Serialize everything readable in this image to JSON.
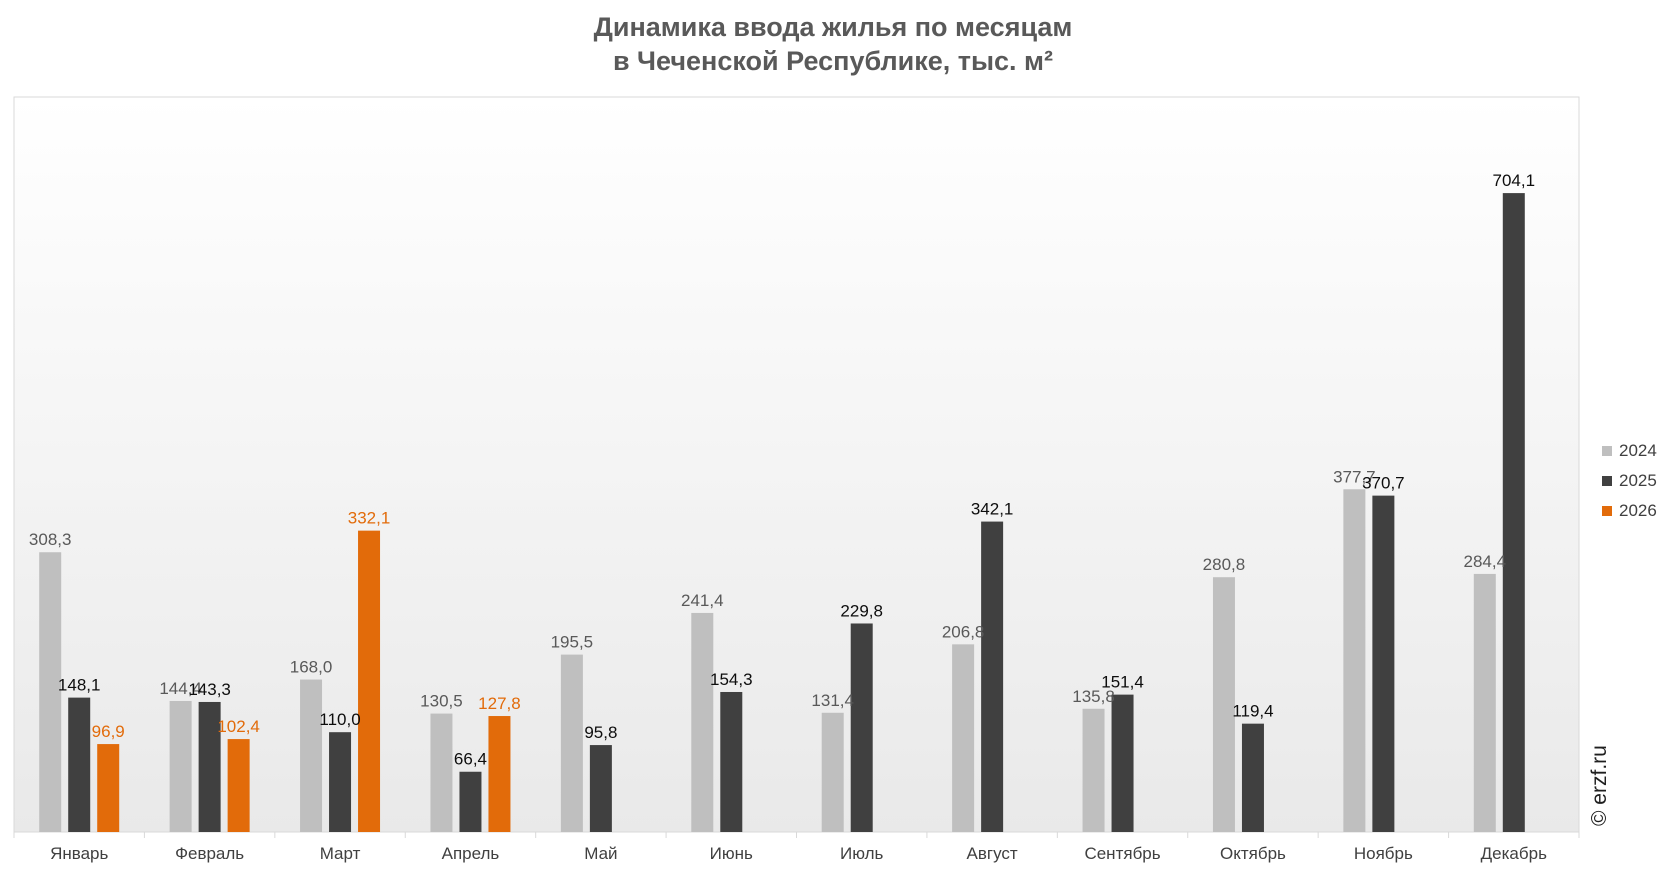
{
  "title_lines": [
    "Динамика ввода жилья по месяцам",
    "в Чеченской Республике, тыс. м²"
  ],
  "watermark": "© erzf.ru",
  "colors": {
    "2024": "#bfbfbf",
    "2025": "#404040",
    "2026": "#e26b0a",
    "label_2024": "#595959",
    "label_2025": "#0d0d0d",
    "label_2026": "#e26b0a"
  },
  "chart_data": {
    "type": "bar",
    "title": "Динамика ввода жилья по месяцам в Чеченской Республике, тыс. м²",
    "categories": [
      "Январь",
      "Февраль",
      "Март",
      "Апрель",
      "Май",
      "Июнь",
      "Июль",
      "Август",
      "Сентябрь",
      "Октябрь",
      "Ноябрь",
      "Декабрь"
    ],
    "series": [
      {
        "name": "2024",
        "values": [
          308.3,
          144.4,
          168.0,
          130.5,
          195.5,
          241.4,
          131.4,
          206.8,
          135.8,
          280.8,
          377.7,
          284.4
        ],
        "labels": [
          "308,3",
          "144,4",
          "168,0",
          "130,5",
          "195,5",
          "241,4",
          "131,4",
          "206,8",
          "135,8",
          "280,8",
          "377,7",
          "284,4"
        ]
      },
      {
        "name": "2025",
        "values": [
          148.1,
          143.3,
          110.0,
          66.4,
          95.8,
          154.3,
          229.8,
          342.1,
          151.4,
          119.4,
          370.7,
          704.1
        ],
        "labels": [
          "148,1",
          "143,3",
          "110,0",
          "66,4",
          "95,8",
          "154,3",
          "229,8",
          "342,1",
          "151,4",
          "119,4",
          "370,7",
          "704,1"
        ]
      },
      {
        "name": "2026",
        "values": [
          96.9,
          102.4,
          332.1,
          127.8,
          null,
          null,
          null,
          null,
          null,
          null,
          null,
          null
        ],
        "labels": [
          "96,9",
          "102,4",
          "332,1",
          "127,8",
          null,
          null,
          null,
          null,
          null,
          null,
          null,
          null
        ]
      }
    ],
    "ylim": [
      0,
      810
    ],
    "grid": false,
    "legend": "right"
  }
}
